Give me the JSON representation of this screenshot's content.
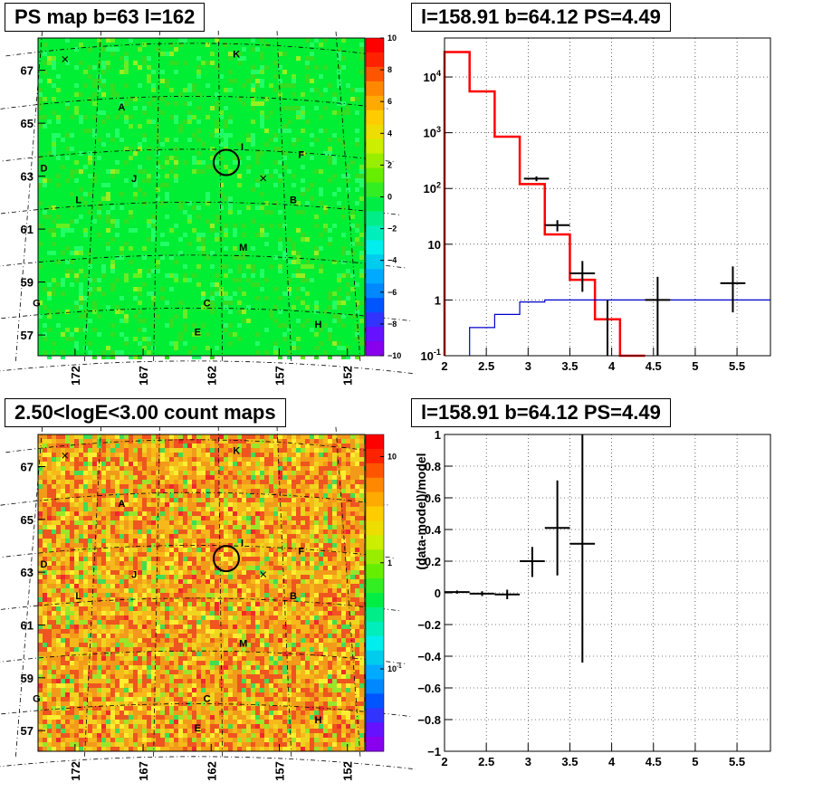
{
  "panels": {
    "ps_map": {
      "title": "PS map b=63 l=162",
      "y_ticks": [
        "67",
        "65",
        "63",
        "61",
        "59",
        "57"
      ],
      "x_ticks": [
        "172",
        "167",
        "162",
        "157",
        "152"
      ],
      "scale_ticks": [
        "10",
        "8",
        "6",
        "4",
        "2",
        "0",
        "−2",
        "−4",
        "−6",
        "−8",
        "−10"
      ]
    },
    "count_map": {
      "title": "2.50<logE<3.00 count maps",
      "y_ticks": [
        "67",
        "65",
        "63",
        "61",
        "59",
        "57"
      ],
      "x_ticks": [
        "172",
        "167",
        "162",
        "157",
        "152"
      ],
      "scale_ticks": [
        "10",
        "1",
        "10"
      ],
      "scale_tick_exp": "-1"
    },
    "spectrum": {
      "title": "l=158.91 b=64.12 PS=4.49"
    },
    "residual": {
      "title": "l=158.91 b=64.12 PS=4.49",
      "ylabel": "(data-model)/model"
    }
  },
  "map_letters": [
    {
      "label": "K",
      "lon": 158.5,
      "lat": 67.6
    },
    {
      "label": "A",
      "lon": 168.0,
      "lat": 65.6
    },
    {
      "label": "I",
      "lon": 158.2,
      "lat": 64.1
    },
    {
      "label": "F",
      "lon": 153.5,
      "lat": 63.8
    },
    {
      "label": "D",
      "lon": 174.0,
      "lat": 63.3
    },
    {
      "label": "J",
      "lon": 166.8,
      "lat": 62.9
    },
    {
      "label": "L",
      "lon": 171.1,
      "lat": 62.1
    },
    {
      "label": "B",
      "lon": 154.3,
      "lat": 62.1
    },
    {
      "label": "M",
      "lon": 158.3,
      "lat": 60.3
    },
    {
      "label": "G",
      "lon": 173.8,
      "lat": 58.2
    },
    {
      "label": "C",
      "lon": 161.1,
      "lat": 58.2
    },
    {
      "label": "E",
      "lon": 161.8,
      "lat": 57.1
    },
    {
      "label": "H",
      "lon": 152.9,
      "lat": 57.4
    }
  ],
  "map_markers": {
    "source_circle": {
      "lon": 159.5,
      "lat": 63.5
    },
    "crosses": [
      {
        "lon": 172.9,
        "lat": 67.4
      },
      {
        "lon": 156.6,
        "lat": 62.9
      }
    ]
  },
  "colors": {
    "map_green": "#00ee33",
    "model_histogram": "#ff0000",
    "background_model": "#0000cc",
    "data_points": "#000000"
  },
  "chart_data": [
    {
      "type": "line",
      "panel": "spectrum",
      "title": "l=158.91 b=64.12 PS=4.49",
      "x_ticks": [
        "2",
        "2.5",
        "3",
        "3.5",
        "4",
        "4.5",
        "5",
        "5.5"
      ],
      "y_ticks": [
        {
          "base": "10",
          "exp": "-1",
          "value": 0.1
        },
        {
          "base": "1",
          "exp": "",
          "value": 1
        },
        {
          "base": "10",
          "exp": "",
          "value": 10
        },
        {
          "base": "10",
          "exp": "2",
          "value": 100
        },
        {
          "base": "10",
          "exp": "3",
          "value": 1000
        },
        {
          "base": "10",
          "exp": "4",
          "value": 10000
        }
      ],
      "xlim": [
        2,
        5.9
      ],
      "ylim": [
        0.1,
        50000
      ],
      "yscale": "log",
      "grid": true,
      "series": [
        {
          "kind": "step",
          "color": "#ff0000",
          "edges": [
            2.0,
            2.3,
            2.6,
            2.9,
            3.2,
            3.5,
            3.8,
            4.1,
            4.4
          ],
          "values": [
            28000,
            5500,
            850,
            120,
            15,
            2.3,
            0.45,
            0.1
          ]
        },
        {
          "kind": "step",
          "color": "#0000cc",
          "edges": [
            2.3,
            2.6,
            2.9,
            3.2,
            5.9
          ],
          "values": [
            0.32,
            0.55,
            0.92,
            1.0
          ]
        },
        {
          "kind": "points",
          "color": "#000000",
          "points": [
            {
              "x": 3.1,
              "y": 150,
              "xerr": 0.15,
              "ylo": 135,
              "yhi": 165
            },
            {
              "x": 3.35,
              "y": 22,
              "xerr": 0.15,
              "ylo": 17,
              "yhi": 27
            },
            {
              "x": 3.65,
              "y": 3,
              "xerr": 0.15,
              "ylo": 1.4,
              "yhi": 5
            },
            {
              "x": 3.95,
              "y": 0.1,
              "xerr": 0,
              "ylo": 0.1,
              "yhi": 1.0
            },
            {
              "x": 4.55,
              "y": 1.0,
              "xerr": 0.15,
              "ylo": 0.1,
              "yhi": 2.6
            },
            {
              "x": 5.45,
              "y": 2.0,
              "xerr": 0.15,
              "ylo": 0.6,
              "yhi": 4.0
            }
          ]
        }
      ]
    },
    {
      "type": "scatter",
      "panel": "residual",
      "title": "l=158.91 b=64.12 PS=4.49",
      "ylabel": "(data-model)/model",
      "x_ticks": [
        "2",
        "2.5",
        "3",
        "3.5",
        "4",
        "4.5",
        "5",
        "5.5"
      ],
      "y_ticks": [
        "1",
        "0.8",
        "0.6",
        "0.4",
        "0.2",
        "0",
        "−0.2",
        "−0.4",
        "−0.6",
        "−0.8",
        "−1"
      ],
      "xlim": [
        2,
        5.9
      ],
      "ylim": [
        -1,
        1
      ],
      "grid": true,
      "points": [
        {
          "x": 2.15,
          "y": 0.005,
          "xerr": 0.15,
          "ylo": -0.005,
          "yhi": 0.015
        },
        {
          "x": 2.45,
          "y": -0.005,
          "xerr": 0.15,
          "ylo": -0.02,
          "yhi": 0.01
        },
        {
          "x": 2.75,
          "y": -0.01,
          "xerr": 0.15,
          "ylo": -0.04,
          "yhi": 0.02
        },
        {
          "x": 3.05,
          "y": 0.2,
          "xerr": 0.15,
          "ylo": 0.1,
          "yhi": 0.29
        },
        {
          "x": 3.35,
          "y": 0.41,
          "xerr": 0.15,
          "ylo": 0.11,
          "yhi": 0.71
        },
        {
          "x": 3.65,
          "y": 0.31,
          "xerr": 0.15,
          "ylo": -0.44,
          "yhi": 1.0
        }
      ]
    }
  ]
}
